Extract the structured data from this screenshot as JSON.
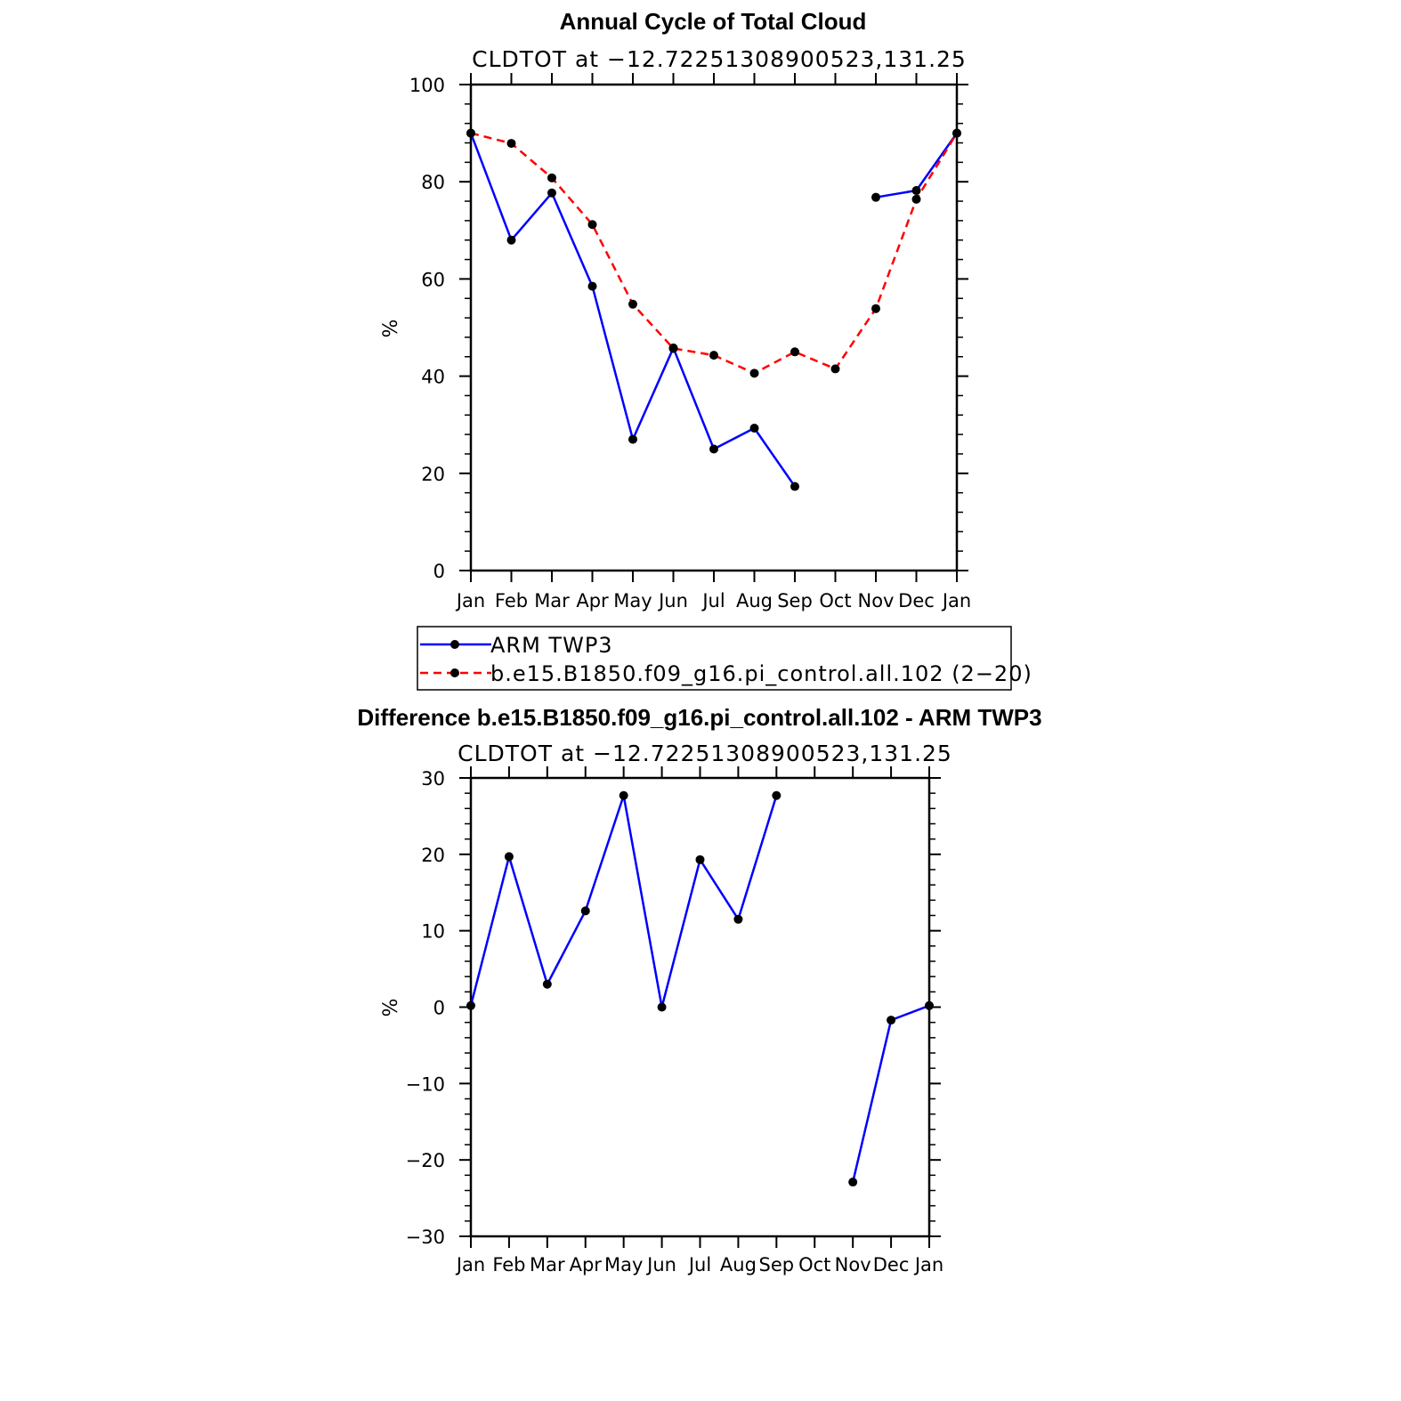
{
  "chart_data": [
    {
      "type": "line",
      "title": "Annual Cycle of Total Cloud",
      "subtitle": "CLDTOT at −12.72251308900523,131.25",
      "ylabel": "%",
      "ylim": [
        0,
        100
      ],
      "yticks": [
        "0",
        "20",
        "40",
        "60",
        "80",
        "100"
      ],
      "categories": [
        "Jan",
        "Feb",
        "Mar",
        "Apr",
        "May",
        "Jun",
        "Jul",
        "Aug",
        "Sep",
        "Oct",
        "Nov",
        "Dec",
        "Jan"
      ],
      "grid": false,
      "legend_position": "bottom",
      "series": [
        {
          "name": "ARM TWP3",
          "color": "#0000ff",
          "dash": "solid",
          "values": [
            90,
            68,
            77.7,
            58.5,
            27,
            45.8,
            25,
            29.3,
            17.3,
            null,
            76.8,
            78.2,
            90
          ]
        },
        {
          "name": "b.e15.B1850.f09_g16.pi_control.all.102 (2−20)",
          "color": "#ff0000",
          "dash": "dashed",
          "values": [
            90,
            87.9,
            80.8,
            71.2,
            54.8,
            45.7,
            44.3,
            40.6,
            45,
            41.5,
            53.9,
            76.4,
            90
          ]
        }
      ]
    },
    {
      "type": "line",
      "title": "Difference b.e15.B1850.f09_g16.pi_control.all.102 - ARM TWP3",
      "subtitle": "CLDTOT at −12.72251308900523,131.25",
      "ylabel": "%",
      "ylim": [
        -30,
        30
      ],
      "yticks": [
        "−30",
        "−20",
        "−10",
        "0",
        "10",
        "20",
        "30"
      ],
      "categories": [
        "Jan",
        "Feb",
        "Mar",
        "Apr",
        "May",
        "Jun",
        "Jul",
        "Aug",
        "Sep",
        "Oct",
        "Nov",
        "Dec",
        "Jan"
      ],
      "grid": false,
      "series": [
        {
          "color": "#0000ff",
          "dash": "solid",
          "values": [
            0.2,
            19.7,
            3,
            12.6,
            27.7,
            0,
            19.3,
            11.5,
            27.7,
            null,
            -22.9,
            -1.7,
            0.2
          ]
        }
      ]
    }
  ]
}
